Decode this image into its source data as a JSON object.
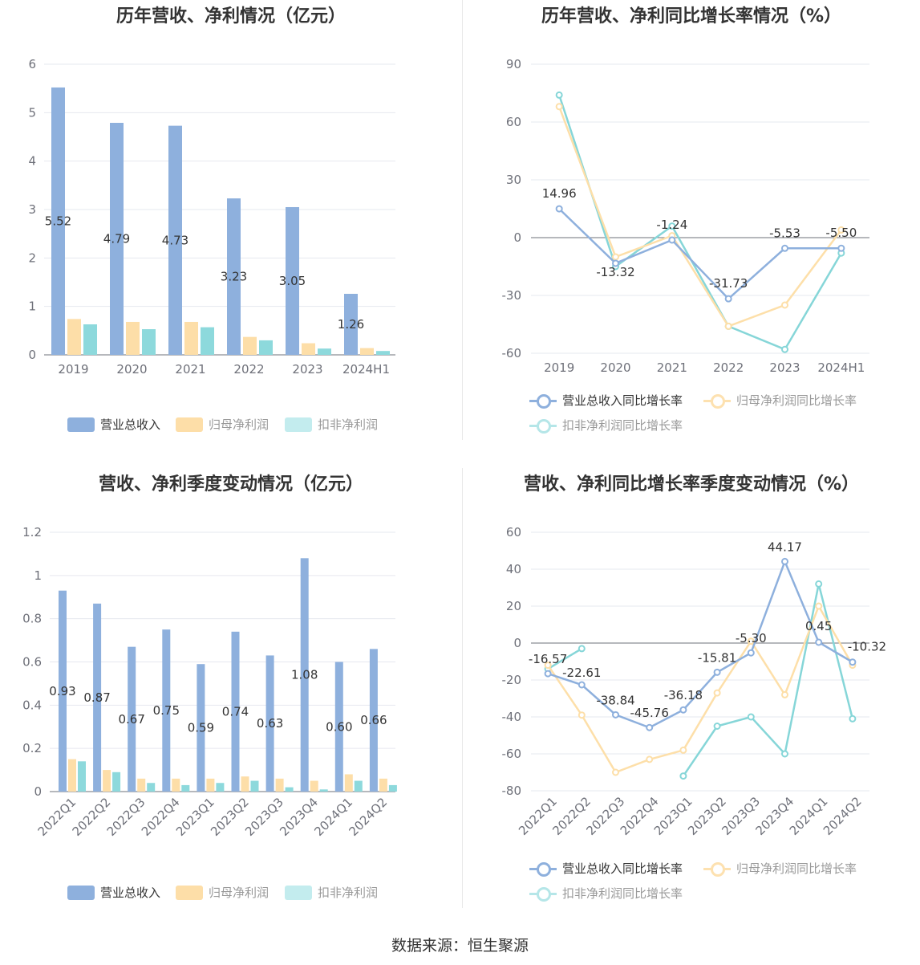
{
  "colors": {
    "revenue": "#8eb0dd",
    "net_profit": "#fddea8",
    "deducted_profit": "#8dd9dc"
  },
  "source": "数据来源：恒生聚源",
  "charts": [
    {
      "title": "历年营收、净利情况（亿元）",
      "legend": [
        "营业总收入",
        "归母净利润",
        "扣非净利润"
      ]
    },
    {
      "title": "历年营收、净利同比增长率情况（%）",
      "legend": [
        "营业总收入同比增长率",
        "归母净利润同比增长率",
        "扣非净利润同比增长率"
      ]
    },
    {
      "title": "营收、净利季度变动情况（亿元）",
      "legend": [
        "营业总收入",
        "归母净利润",
        "扣非净利润"
      ]
    },
    {
      "title": "营收、净利同比增长率季度变动情况（%）",
      "legend": [
        "营业总收入同比增长率",
        "归母净利润同比增长率",
        "扣非净利润同比增长率"
      ]
    }
  ],
  "chart_data": [
    {
      "type": "bar",
      "title": "历年营收、净利情况（亿元）",
      "categories": [
        "2019",
        "2020",
        "2021",
        "2022",
        "2023",
        "2024H1"
      ],
      "ylim": [
        0,
        6
      ],
      "yticks": [
        0,
        1,
        2,
        3,
        4,
        5,
        6
      ],
      "series": [
        {
          "name": "营业总收入",
          "values": [
            5.52,
            4.79,
            4.73,
            3.23,
            3.05,
            1.26
          ],
          "labels": [
            "5.52",
            "4.79",
            "4.73",
            "3.23",
            "3.05",
            "1.26"
          ]
        },
        {
          "name": "归母净利润",
          "values": [
            0.74,
            0.68,
            0.68,
            0.37,
            0.24,
            0.14
          ]
        },
        {
          "name": "扣非净利润",
          "values": [
            0.63,
            0.53,
            0.57,
            0.3,
            0.13,
            0.08
          ]
        }
      ],
      "legend_position": "bottom"
    },
    {
      "type": "line",
      "title": "历年营收、净利同比增长率情况（%）",
      "categories": [
        "2019",
        "2020",
        "2021",
        "2022",
        "2023",
        "2024H1"
      ],
      "ylim": [
        -60,
        90
      ],
      "yticks": [
        -60,
        -30,
        0,
        30,
        60,
        90
      ],
      "series": [
        {
          "name": "营业总收入同比增长率",
          "values": [
            14.96,
            -13.32,
            -1.24,
            -31.73,
            -5.53,
            -5.5
          ],
          "labels": [
            "14.96",
            "-13.32",
            "-1.24",
            "-31.73",
            "-5.53",
            "-5.50"
          ]
        },
        {
          "name": "归母净利润同比增长率",
          "values": [
            68.0,
            -10.0,
            1.0,
            -46.0,
            -35.0,
            4.0
          ]
        },
        {
          "name": "扣非净利润同比增长率",
          "values": [
            74.0,
            -15.0,
            6.0,
            -46.0,
            -58.0,
            -8.0
          ]
        }
      ],
      "legend_position": "bottom"
    },
    {
      "type": "bar",
      "title": "营收、净利季度变动情况（亿元）",
      "categories": [
        "2022Q1",
        "2022Q2",
        "2022Q3",
        "2022Q4",
        "2023Q1",
        "2023Q2",
        "2023Q3",
        "2023Q4",
        "2024Q1",
        "2024Q2"
      ],
      "ylim": [
        0,
        1.2
      ],
      "yticks": [
        0,
        0.2,
        0.4,
        0.6,
        0.8,
        1,
        1.2
      ],
      "series": [
        {
          "name": "营业总收入",
          "values": [
            0.93,
            0.87,
            0.67,
            0.75,
            0.59,
            0.74,
            0.63,
            1.08,
            0.6,
            0.66
          ],
          "labels": [
            "0.93",
            "0.87",
            "0.67",
            "0.75",
            "0.59",
            "0.74",
            "0.63",
            "1.08",
            "0.60",
            "0.66"
          ]
        },
        {
          "name": "归母净利润",
          "values": [
            0.15,
            0.1,
            0.06,
            0.06,
            0.06,
            0.07,
            0.06,
            0.05,
            0.08,
            0.06
          ]
        },
        {
          "name": "扣非净利润",
          "values": [
            0.14,
            0.09,
            0.04,
            0.03,
            0.04,
            0.05,
            0.02,
            0.01,
            0.05,
            0.03
          ]
        }
      ],
      "legend_position": "bottom"
    },
    {
      "type": "line",
      "title": "营收、净利同比增长率季度变动情况（%）",
      "categories": [
        "2022Q1",
        "2022Q2",
        "2022Q3",
        "2022Q4",
        "2023Q1",
        "2023Q2",
        "2023Q3",
        "2023Q4",
        "2024Q1",
        "2024Q2"
      ],
      "ylim": [
        -80,
        60
      ],
      "yticks": [
        -80,
        -60,
        -40,
        -20,
        0,
        20,
        40,
        60
      ],
      "series": [
        {
          "name": "营业总收入同比增长率",
          "values": [
            -16.57,
            -22.61,
            -38.84,
            -45.76,
            -36.18,
            -15.81,
            -5.3,
            44.17,
            0.45,
            -10.32
          ],
          "labels": [
            "-16.57",
            "-22.61",
            "-38.84",
            "-45.76",
            "-36.18",
            "-15.81",
            "-5.30",
            "44.17",
            "0.45",
            "-10.32"
          ]
        },
        {
          "name": "归母净利润同比增长率",
          "values": [
            -12.0,
            -39.0,
            -70.0,
            -63.0,
            -58.0,
            -27.0,
            1.0,
            -28.0,
            20.0,
            -12.0
          ]
        },
        {
          "name": "扣非净利润同比增长率",
          "values": [
            -14.0,
            -3.0,
            null,
            null,
            -72.0,
            -45.0,
            -40.0,
            -60.0,
            32.0,
            -41.0
          ]
        }
      ],
      "legend_position": "bottom"
    }
  ]
}
